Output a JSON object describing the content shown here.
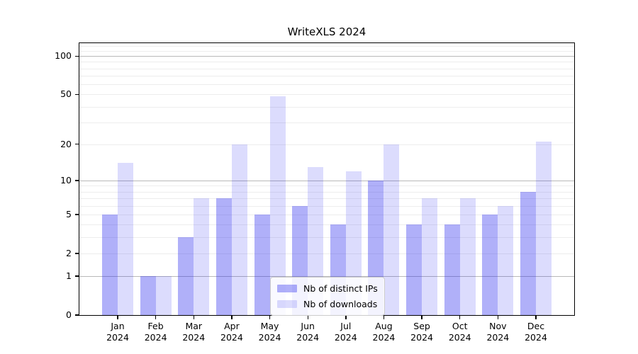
{
  "title": "WriteXLS 2024",
  "chart_data": {
    "type": "bar",
    "title": "WriteXLS 2024",
    "xlabel": "",
    "ylabel": "",
    "yscale": "log1p",
    "ylim": [
      0,
      126
    ],
    "yticks": [
      0,
      1,
      2,
      5,
      10,
      20,
      50,
      100
    ],
    "categories": [
      "Jan\n2024",
      "Feb\n2024",
      "Mar\n2024",
      "Apr\n2024",
      "May\n2024",
      "Jun\n2024",
      "Jul\n2024",
      "Aug\n2024",
      "Sep\n2024",
      "Oct\n2024",
      "Nov\n2024",
      "Dec\n2024"
    ],
    "series": [
      {
        "name": "Nb of distinct IPs",
        "color": "rgba(40,40,240,0.37)",
        "values": [
          5,
          1,
          3,
          7,
          5,
          6,
          4,
          10,
          4,
          4,
          5,
          8
        ]
      },
      {
        "name": "Nb of downloads",
        "color": "rgba(40,40,240,0.16)",
        "values": [
          14,
          1,
          7,
          20,
          48,
          13,
          12,
          20,
          7,
          7,
          6,
          21
        ]
      }
    ],
    "grid": {
      "major": [
        1,
        10,
        100
      ],
      "minor": [
        2,
        3,
        4,
        5,
        6,
        7,
        8,
        9,
        20,
        30,
        40,
        50,
        60,
        70,
        80,
        90,
        110,
        120
      ],
      "major_color": "#b8b8b8",
      "minor_color": "#ededed"
    },
    "legend_position": "lower center inside plot",
    "axis_color": "#000000",
    "background_color": "#ffffff"
  }
}
